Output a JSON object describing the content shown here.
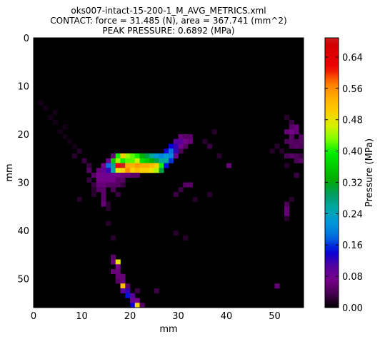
{
  "chart_data": {
    "type": "heatmap",
    "title_lines": [
      "oks007-intact-15-200-1_M_AVG_METRICS.xml",
      "CONTACT: force = 31.485 (N), area = 367.741 (mm^2)",
      "PEAK PRESSURE: 0.6892 (MPa)"
    ],
    "xlabel": "mm",
    "ylabel": "mm",
    "xlim": [
      0,
      56
    ],
    "ylim": [
      0,
      56
    ],
    "y_inverted": true,
    "x_ticks": [
      "0",
      "10",
      "20",
      "30",
      "40",
      "50"
    ],
    "y_ticks": [
      "0",
      "10",
      "20",
      "30",
      "40",
      "50"
    ],
    "colorbar": {
      "label": "Pressure (MPa)",
      "range": [
        0,
        0.6892
      ],
      "ticks": [
        "0.00",
        "0.08",
        "0.16",
        "0.24",
        "0.32",
        "0.40",
        "0.48",
        "0.56",
        "0.64"
      ],
      "colormap": "nipy_spectral"
    },
    "background_color": "#000000",
    "cells": [
      [
        1,
        13,
        0.01
      ],
      [
        2,
        14,
        0.01
      ],
      [
        4,
        15,
        0.01
      ],
      [
        3,
        16,
        0.01
      ],
      [
        4,
        17,
        0.01
      ],
      [
        6,
        18,
        0.01
      ],
      [
        5,
        19,
        0.01
      ],
      [
        6,
        20,
        0.01
      ],
      [
        7,
        21,
        0.01
      ],
      [
        8,
        22,
        0.01
      ],
      [
        9,
        23,
        0.02
      ],
      [
        8,
        24,
        0.02
      ],
      [
        10,
        25,
        0.03
      ],
      [
        11,
        26,
        0.03
      ],
      [
        11,
        27,
        0.05
      ],
      [
        12,
        28,
        0.05
      ],
      [
        11,
        29,
        0.03
      ],
      [
        12,
        30,
        0.03
      ],
      [
        13,
        27,
        0.06
      ],
      [
        13,
        28,
        0.07
      ],
      [
        13,
        29,
        0.07
      ],
      [
        13,
        30,
        0.06
      ],
      [
        13,
        31,
        0.05
      ],
      [
        14,
        26,
        0.07
      ],
      [
        14,
        27,
        0.09
      ],
      [
        14,
        28,
        0.08
      ],
      [
        14,
        29,
        0.07
      ],
      [
        14,
        30,
        0.06
      ],
      [
        14,
        31,
        0.05
      ],
      [
        14,
        32,
        0.05
      ],
      [
        14,
        33,
        0.05
      ],
      [
        14,
        34,
        0.06
      ],
      [
        15,
        25,
        0.08
      ],
      [
        15,
        26,
        0.18
      ],
      [
        15,
        27,
        0.12
      ],
      [
        15,
        28,
        0.08
      ],
      [
        15,
        29,
        0.07
      ],
      [
        15,
        30,
        0.05
      ],
      [
        16,
        24,
        0.06
      ],
      [
        16,
        25,
        0.36
      ],
      [
        16,
        26,
        0.27
      ],
      [
        16,
        27,
        0.26
      ],
      [
        16,
        28,
        0.08
      ],
      [
        16,
        29,
        0.07
      ],
      [
        16,
        30,
        0.05
      ],
      [
        17,
        24,
        0.4
      ],
      [
        17,
        25,
        0.44
      ],
      [
        17,
        26,
        0.62
      ],
      [
        17,
        27,
        0.47
      ],
      [
        17,
        28,
        0.07
      ],
      [
        17,
        29,
        0.05
      ],
      [
        17,
        30,
        0.05
      ],
      [
        18,
        24,
        0.5
      ],
      [
        18,
        25,
        0.4
      ],
      [
        18,
        26,
        0.69
      ],
      [
        18,
        27,
        0.5
      ],
      [
        18,
        28,
        0.06
      ],
      [
        18,
        29,
        0.05
      ],
      [
        18,
        30,
        0.03
      ],
      [
        19,
        24,
        0.44
      ],
      [
        19,
        25,
        0.42
      ],
      [
        19,
        26,
        0.54
      ],
      [
        19,
        27,
        0.56
      ],
      [
        19,
        28,
        0.06
      ],
      [
        20,
        24,
        0.42
      ],
      [
        20,
        25,
        0.42
      ],
      [
        20,
        26,
        0.53
      ],
      [
        20,
        27,
        0.5
      ],
      [
        20,
        28,
        0.05
      ],
      [
        21,
        24,
        0.4
      ],
      [
        21,
        25,
        0.46
      ],
      [
        21,
        26,
        0.55
      ],
      [
        21,
        27,
        0.52
      ],
      [
        21,
        28,
        0.05
      ],
      [
        22,
        24,
        0.33
      ],
      [
        22,
        25,
        0.38
      ],
      [
        22,
        26,
        0.54
      ],
      [
        22,
        27,
        0.5
      ],
      [
        23,
        24,
        0.3
      ],
      [
        23,
        25,
        0.36
      ],
      [
        23,
        26,
        0.54
      ],
      [
        23,
        27,
        0.5
      ],
      [
        24,
        24,
        0.26
      ],
      [
        24,
        25,
        0.33
      ],
      [
        24,
        26,
        0.52
      ],
      [
        24,
        27,
        0.48
      ],
      [
        25,
        24,
        0.22
      ],
      [
        25,
        25,
        0.3
      ],
      [
        25,
        26,
        0.5
      ],
      [
        25,
        27,
        0.45
      ],
      [
        26,
        24,
        0.2
      ],
      [
        26,
        25,
        0.26
      ],
      [
        26,
        26,
        0.4
      ],
      [
        26,
        27,
        0.3
      ],
      [
        27,
        23,
        0.14
      ],
      [
        27,
        24,
        0.22
      ],
      [
        27,
        25,
        0.26
      ],
      [
        27,
        26,
        0.15
      ],
      [
        28,
        22,
        0.14
      ],
      [
        28,
        23,
        0.18
      ],
      [
        28,
        24,
        0.2
      ],
      [
        28,
        25,
        0.16
      ],
      [
        29,
        21,
        0.1
      ],
      [
        29,
        22,
        0.12
      ],
      [
        29,
        23,
        0.12
      ],
      [
        29,
        24,
        0.08
      ],
      [
        30,
        20,
        0.06
      ],
      [
        30,
        21,
        0.1
      ],
      [
        30,
        22,
        0.08
      ],
      [
        30,
        23,
        0.04
      ],
      [
        31,
        20,
        0.05
      ],
      [
        31,
        21,
        0.07
      ],
      [
        31,
        22,
        0.05
      ],
      [
        32,
        20,
        0.05
      ],
      [
        32,
        21,
        0.06
      ],
      [
        32,
        30,
        0.05
      ],
      [
        31,
        30,
        0.05
      ],
      [
        30,
        31,
        0.03
      ],
      [
        36,
        22,
        0.03
      ],
      [
        35,
        21,
        0.02
      ],
      [
        37,
        19,
        0.02
      ],
      [
        38,
        24,
        0.02
      ],
      [
        40,
        26,
        0.06
      ],
      [
        29,
        32,
        0.03
      ],
      [
        33,
        33,
        0.02
      ],
      [
        36,
        32,
        0.02
      ],
      [
        31,
        41,
        0.02
      ],
      [
        29,
        40,
        0.02
      ],
      [
        15,
        34,
        0.02
      ],
      [
        15,
        35,
        0.02
      ],
      [
        16,
        31,
        0.04
      ],
      [
        17,
        32,
        0.03
      ],
      [
        12,
        31,
        0.02
      ],
      [
        12,
        32,
        0.02
      ],
      [
        9,
        33,
        0.02
      ],
      [
        15,
        38,
        0.02
      ],
      [
        16,
        41,
        0.02
      ],
      [
        16,
        45,
        0.05
      ],
      [
        16,
        46,
        0.06
      ],
      [
        17,
        46,
        0.48
      ],
      [
        17,
        47,
        0.07
      ],
      [
        16,
        48,
        0.06
      ],
      [
        17,
        48,
        0.06
      ],
      [
        17,
        49,
        0.06
      ],
      [
        18,
        49,
        0.06
      ],
      [
        17,
        50,
        0.05
      ],
      [
        18,
        50,
        0.06
      ],
      [
        18,
        51,
        0.52
      ],
      [
        19,
        51,
        0.05
      ],
      [
        18,
        52,
        0.1
      ],
      [
        19,
        52,
        0.12
      ],
      [
        19,
        53,
        0.15
      ],
      [
        20,
        53,
        0.1
      ],
      [
        21,
        52,
        0.03
      ],
      [
        20,
        54,
        0.09
      ],
      [
        21,
        54,
        0.07
      ],
      [
        20,
        55,
        0.14
      ],
      [
        21,
        55,
        0.49
      ],
      [
        22,
        55,
        0.05
      ],
      [
        25,
        52,
        0.03
      ],
      [
        52,
        16,
        0.02
      ],
      [
        53,
        17,
        0.03
      ],
      [
        53,
        18,
        0.05
      ],
      [
        54,
        18,
        0.06
      ],
      [
        52,
        19,
        0.06
      ],
      [
        53,
        19,
        0.07
      ],
      [
        54,
        19,
        0.06
      ],
      [
        53,
        20,
        0.05
      ],
      [
        55,
        20,
        0.05
      ],
      [
        52,
        21,
        0.04
      ],
      [
        53,
        21,
        0.05
      ],
      [
        54,
        21,
        0.04
      ],
      [
        55,
        21,
        0.05
      ],
      [
        53,
        22,
        0.04
      ],
      [
        54,
        22,
        0.05
      ],
      [
        55,
        22,
        0.04
      ],
      [
        50,
        22,
        0.02
      ],
      [
        49,
        23,
        0.02
      ],
      [
        51,
        23,
        0.02
      ],
      [
        52,
        24,
        0.04
      ],
      [
        53,
        24,
        0.05
      ],
      [
        54,
        24,
        0.04
      ],
      [
        55,
        24,
        0.03
      ],
      [
        54,
        25,
        0.04
      ],
      [
        55,
        25,
        0.05
      ],
      [
        52,
        26,
        0.02
      ],
      [
        54,
        28,
        0.03
      ],
      [
        53,
        33,
        0.02
      ],
      [
        52,
        34,
        0.04
      ],
      [
        52,
        35,
        0.06
      ],
      [
        52,
        36,
        0.06
      ],
      [
        52,
        37,
        0.02
      ],
      [
        50,
        51,
        0.06
      ]
    ]
  }
}
